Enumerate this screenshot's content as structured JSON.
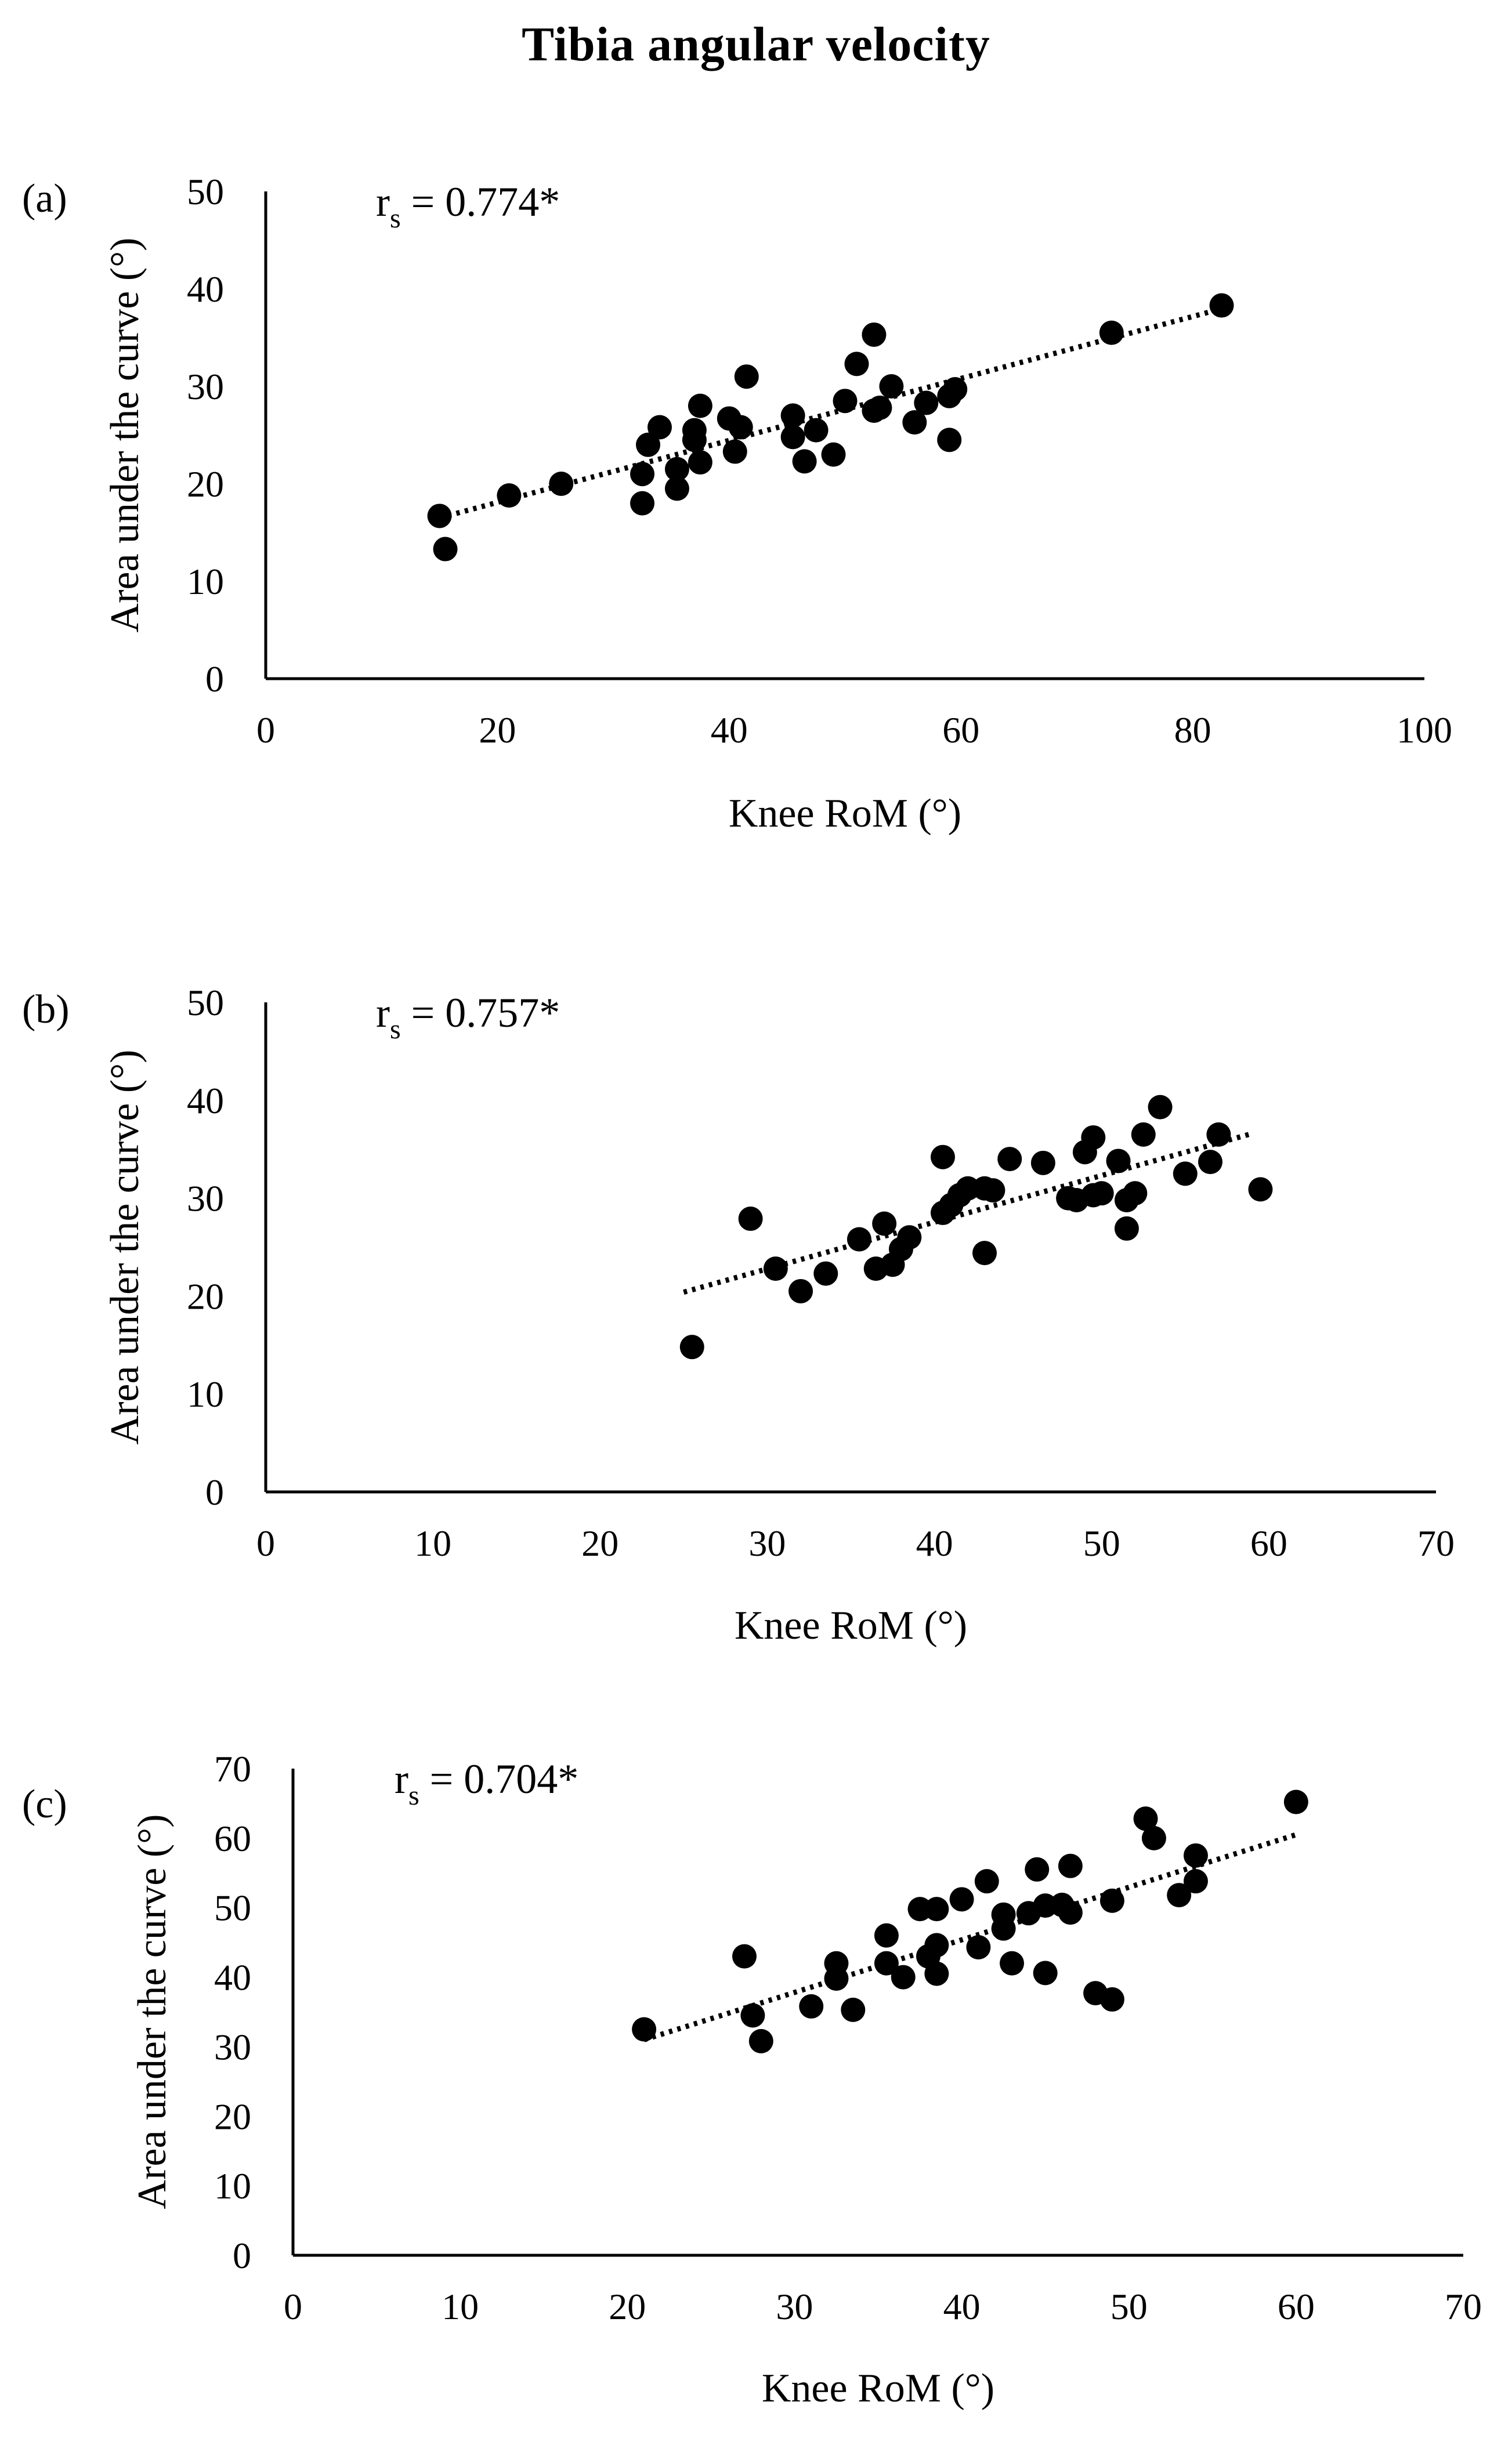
{
  "figure": {
    "title": "Tibia angular velocity"
  },
  "chart_data": [
    {
      "type": "scatter",
      "panel_label": "(a)",
      "annotation": {
        "prefix": "r",
        "subscript": "s",
        "text": " = 0.774*"
      },
      "xlabel": "Knee RoM (°)",
      "ylabel": "Area under the curve (°)",
      "xlim": [
        0,
        100
      ],
      "ylim": [
        0,
        50
      ],
      "xticks": [
        0,
        20,
        40,
        60,
        80,
        100
      ],
      "yticks": [
        0,
        10,
        20,
        30,
        40,
        50
      ],
      "grid": false,
      "trendline": {
        "style": "dotted",
        "x": [
          15,
          82
        ],
        "y": [
          16.5,
          37.8
        ]
      },
      "points": [
        [
          15,
          16.7
        ],
        [
          15.5,
          13.3
        ],
        [
          21,
          18.8
        ],
        [
          25.5,
          20
        ],
        [
          32.5,
          21
        ],
        [
          32.5,
          18
        ],
        [
          33,
          24
        ],
        [
          34,
          25.8
        ],
        [
          35.5,
          21.5
        ],
        [
          35.5,
          19.5
        ],
        [
          37,
          24.5
        ],
        [
          37,
          25.5
        ],
        [
          37.5,
          28
        ],
        [
          37.5,
          22.2
        ],
        [
          40,
          26.7
        ],
        [
          40.5,
          23.3
        ],
        [
          41,
          25.8
        ],
        [
          41.5,
          31
        ],
        [
          45.5,
          27
        ],
        [
          45.5,
          24.8
        ],
        [
          46.5,
          22.3
        ],
        [
          47.5,
          25.5
        ],
        [
          49,
          23
        ],
        [
          50,
          28.5
        ],
        [
          51,
          32.3
        ],
        [
          52.5,
          35.3
        ],
        [
          52.5,
          27.5
        ],
        [
          53,
          27.8
        ],
        [
          54,
          30
        ],
        [
          56,
          26.3
        ],
        [
          57,
          28.3
        ],
        [
          59,
          29
        ],
        [
          59,
          24.5
        ],
        [
          59.5,
          29.7
        ],
        [
          73,
          35.5
        ],
        [
          82.5,
          38.3
        ]
      ]
    },
    {
      "type": "scatter",
      "panel_label": "(b)",
      "annotation": {
        "prefix": "r",
        "subscript": "s",
        "text": " = 0.757*"
      },
      "xlabel": "Knee RoM (°)",
      "ylabel": "Area under the curve (°)",
      "xlim": [
        0,
        70
      ],
      "ylim": [
        0,
        50
      ],
      "xticks": [
        0,
        10,
        20,
        30,
        40,
        50,
        60,
        70
      ],
      "yticks": [
        0,
        10,
        20,
        30,
        40,
        50
      ],
      "grid": false,
      "trendline": {
        "style": "dotted",
        "x": [
          25,
          59
        ],
        "y": [
          20.4,
          36.6
        ]
      },
      "points": [
        [
          25.5,
          14.8
        ],
        [
          29,
          27.9
        ],
        [
          30.5,
          22.8
        ],
        [
          32,
          20.5
        ],
        [
          33.5,
          22.3
        ],
        [
          35.5,
          25.8
        ],
        [
          36.5,
          22.8
        ],
        [
          37,
          27.4
        ],
        [
          37.5,
          23.2
        ],
        [
          38,
          24.8
        ],
        [
          38.5,
          26
        ],
        [
          40.5,
          28.5
        ],
        [
          40.5,
          34.2
        ],
        [
          41,
          29.3
        ],
        [
          41.5,
          30.3
        ],
        [
          42,
          31
        ],
        [
          43,
          31
        ],
        [
          43,
          24.4
        ],
        [
          43.5,
          30.8
        ],
        [
          44.5,
          34
        ],
        [
          46.5,
          33.6
        ],
        [
          48,
          30
        ],
        [
          48.5,
          29.8
        ],
        [
          49,
          34.7
        ],
        [
          49.5,
          30.3
        ],
        [
          49.5,
          36.2
        ],
        [
          50,
          30.5
        ],
        [
          51,
          33.8
        ],
        [
          51.5,
          26.9
        ],
        [
          51.5,
          29.8
        ],
        [
          52,
          30.5
        ],
        [
          52.5,
          36.5
        ],
        [
          53.5,
          39.3
        ],
        [
          55,
          32.5
        ],
        [
          56.5,
          33.7
        ],
        [
          57,
          36.5
        ],
        [
          59.5,
          30.9
        ]
      ]
    },
    {
      "type": "scatter",
      "panel_label": "(c)",
      "annotation": {
        "prefix": "r",
        "subscript": "s",
        "text": " = 0.704*"
      },
      "xlabel": "Knee RoM (°)",
      "ylabel": "Area under the curve (°)",
      "xlim": [
        0,
        70
      ],
      "ylim": [
        0,
        70
      ],
      "xticks": [
        0,
        10,
        20,
        30,
        40,
        50,
        60,
        70
      ],
      "yticks": [
        0,
        10,
        20,
        30,
        40,
        50,
        60,
        70
      ],
      "grid": false,
      "trendline": {
        "style": "dotted",
        "x": [
          21,
          60
        ],
        "y": [
          31,
          60.5
        ]
      },
      "points": [
        [
          21,
          32.5
        ],
        [
          27,
          43
        ],
        [
          27.5,
          34.5
        ],
        [
          28,
          30.8
        ],
        [
          31,
          35.8
        ],
        [
          32.5,
          39.8
        ],
        [
          32.5,
          42
        ],
        [
          33.5,
          35.3
        ],
        [
          35.5,
          46
        ],
        [
          35.5,
          42
        ],
        [
          36.5,
          40
        ],
        [
          37.5,
          49.8
        ],
        [
          38,
          43
        ],
        [
          38.5,
          44.6
        ],
        [
          38.5,
          40.5
        ],
        [
          38.5,
          49.8
        ],
        [
          40,
          51.2
        ],
        [
          41,
          44.3
        ],
        [
          41.5,
          53.8
        ],
        [
          42.5,
          49
        ],
        [
          42.5,
          47
        ],
        [
          43,
          42
        ],
        [
          44,
          49.2
        ],
        [
          44.5,
          55.5
        ],
        [
          45,
          50.3
        ],
        [
          45,
          40.6
        ],
        [
          46,
          50.4
        ],
        [
          46.5,
          56
        ],
        [
          46.5,
          49.3
        ],
        [
          48,
          37.7
        ],
        [
          49,
          36.8
        ],
        [
          49,
          51
        ],
        [
          51,
          62.8
        ],
        [
          51.5,
          60
        ],
        [
          53,
          51.8
        ],
        [
          54,
          57.5
        ],
        [
          54,
          53.8
        ],
        [
          60,
          65.2
        ]
      ]
    }
  ]
}
